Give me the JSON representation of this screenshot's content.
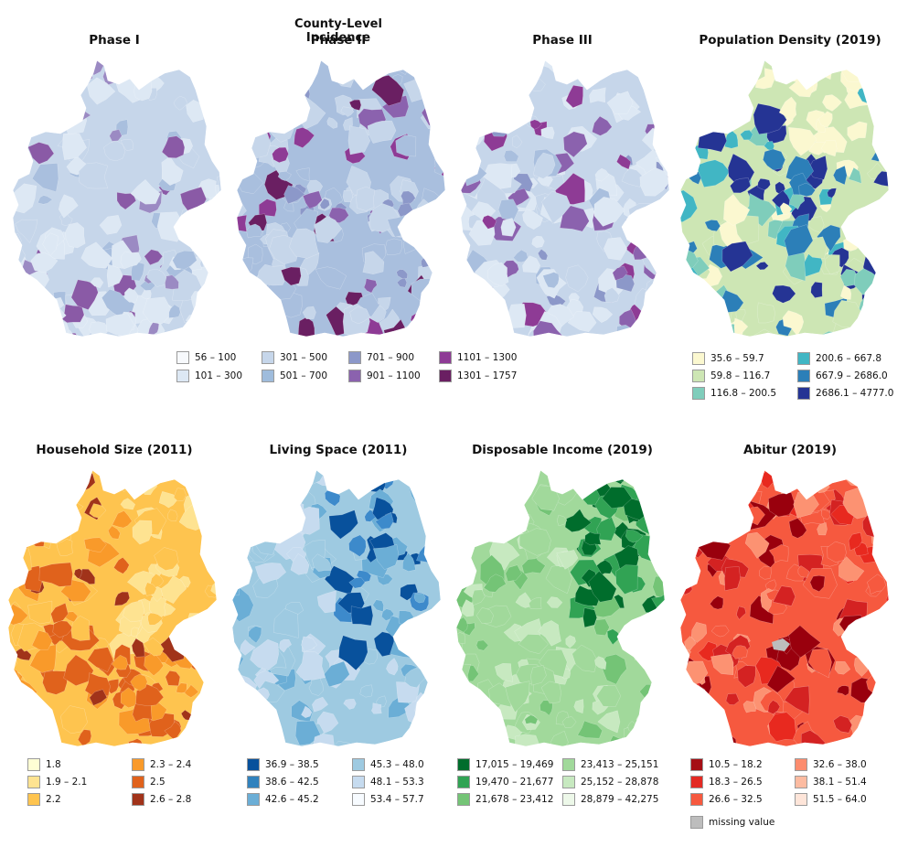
{
  "figure": {
    "supertitle": "County-Level Incidence",
    "panels": [
      {
        "id": "phase1",
        "title": "Phase I",
        "palette": [
          "#dde8f4",
          "#c6d6ea",
          "#a9bfde",
          "#9b8ac3",
          "#8a5aa6"
        ]
      },
      {
        "id": "phase2",
        "title": "Phase II",
        "palette": [
          "#c6d6ea",
          "#a9bfde",
          "#8c98c9",
          "#8b62ae",
          "#8e3b95",
          "#6a1f62"
        ]
      },
      {
        "id": "phase3",
        "title": "Phase III",
        "palette": [
          "#dde8f4",
          "#c6d6ea",
          "#a9bfde",
          "#8c98c9",
          "#8b62ae",
          "#8e3b95"
        ]
      },
      {
        "id": "popdensity",
        "title": "Population Density (2019)",
        "palette": [
          "#fbf8d0",
          "#cde6b4",
          "#7fcdbb",
          "#41b6c4",
          "#2c7fb8",
          "#253494"
        ]
      },
      {
        "id": "household",
        "title": "Household Size (2011)",
        "palette": [
          "#fee391",
          "#fec44f",
          "#f99a2a",
          "#e0621c",
          "#a1331a"
        ]
      },
      {
        "id": "livingspace",
        "title": "Living Space (2011)",
        "palette": [
          "#c6dbef",
          "#9ecae1",
          "#6baed6",
          "#3d8acb",
          "#08519c"
        ]
      },
      {
        "id": "income",
        "title": "Disposable Income (2019)",
        "palette": [
          "#c7e9c0",
          "#a1d99b",
          "#74c476",
          "#31a354",
          "#006d2c"
        ]
      },
      {
        "id": "abitur",
        "title": "Abitur (2019)",
        "palette": [
          "#fc9272",
          "#f6593f",
          "#e8291f",
          "#d42222",
          "#99000d"
        ]
      }
    ]
  },
  "legends": {
    "incidence": [
      {
        "label": "56 – 100",
        "color": "#f7f9fc"
      },
      {
        "label": "101 – 300",
        "color": "#dde8f4"
      },
      {
        "label": "301 – 500",
        "color": "#c6d6ea"
      },
      {
        "label": "501 – 700",
        "color": "#9fbcdc"
      },
      {
        "label": "701 – 900",
        "color": "#8c98c9"
      },
      {
        "label": "901 – 1100",
        "color": "#8b62ae"
      },
      {
        "label": "1101 – 1300",
        "color": "#8e3b95"
      },
      {
        "label": "1301 – 1757",
        "color": "#6a1f62"
      }
    ],
    "popdensity": [
      {
        "label": "35.6 – 59.7",
        "color": "#fbf8d0"
      },
      {
        "label": "59.8 – 116.7",
        "color": "#cde6b4"
      },
      {
        "label": "116.8 – 200.5",
        "color": "#7fcdbb"
      },
      {
        "label": "200.6 – 667.8",
        "color": "#41b6c4"
      },
      {
        "label": "667.9 – 2686.0",
        "color": "#2c7fb8"
      },
      {
        "label": "2686.1 – 4777.0",
        "color": "#253494"
      }
    ],
    "household": [
      {
        "label": "1.8",
        "color": "#ffffd4"
      },
      {
        "label": "1.9 – 2.1",
        "color": "#fee391"
      },
      {
        "label": "2.2",
        "color": "#fec44f"
      },
      {
        "label": "2.3 – 2.4",
        "color": "#f99a2a"
      },
      {
        "label": "2.5",
        "color": "#e0621c"
      },
      {
        "label": "2.6 – 2.8",
        "color": "#a1331a"
      }
    ],
    "livingspace": [
      {
        "label": "36.9 – 38.5",
        "color": "#08519c"
      },
      {
        "label": "38.6 – 42.5",
        "color": "#3182bd"
      },
      {
        "label": "42.6 – 45.2",
        "color": "#6baed6"
      },
      {
        "label": "45.3 – 48.0",
        "color": "#9ecae1"
      },
      {
        "label": "48.1 – 53.3",
        "color": "#c6dbef"
      },
      {
        "label": "53.4 – 57.7",
        "color": "#f7fbff"
      }
    ],
    "income": [
      {
        "label": "17,015 – 19,469",
        "color": "#006d2c"
      },
      {
        "label": "19,470 – 21,677",
        "color": "#31a354"
      },
      {
        "label": "21,678 – 23,412",
        "color": "#74c476"
      },
      {
        "label": "23,413 – 25,151",
        "color": "#a1d99b"
      },
      {
        "label": "25,152 – 28,878",
        "color": "#c7e9c0"
      },
      {
        "label": "28,879 – 42,275",
        "color": "#edf8e9"
      }
    ],
    "abitur": [
      {
        "label": "10.5 – 18.2",
        "color": "#a50f15"
      },
      {
        "label": "18.3 – 26.5",
        "color": "#e32a23"
      },
      {
        "label": "26.6 – 32.5",
        "color": "#f6593f"
      },
      {
        "label": "32.6 – 38.0",
        "color": "#fc8c6e"
      },
      {
        "label": "38.1 – 51.4",
        "color": "#fcbba1"
      },
      {
        "label": "51.5 – 64.0",
        "color": "#fee5d9"
      },
      {
        "label": "missing value",
        "color": "#bdbdbd"
      }
    ]
  }
}
